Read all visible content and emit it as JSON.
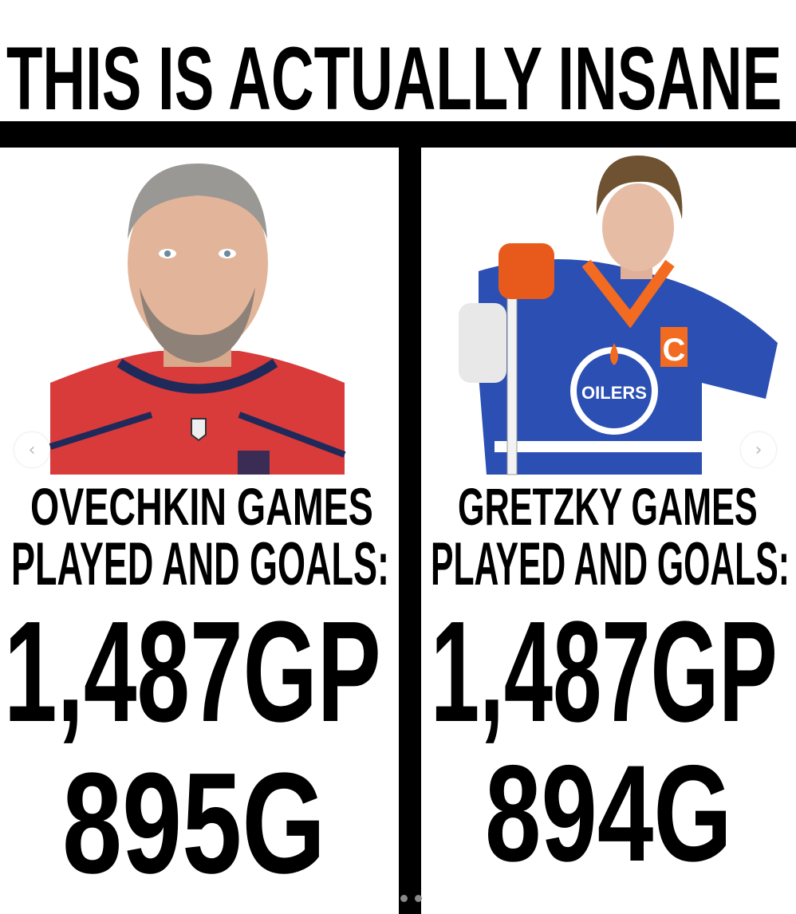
{
  "title": "THIS IS ACTUALLY INSANE",
  "left": {
    "line1": "OVECHKIN GAMES",
    "line2": "PLAYED AND GOALS:",
    "games": "1,487GP",
    "goals": "895G",
    "photo_alt": "Ovechkin portrait",
    "jersey_color": "#d93a3a"
  },
  "right": {
    "line1": "GRETZKY GAMES",
    "line2": "PLAYED AND GOALS:",
    "games": "1,487GP",
    "goals": "894G",
    "photo_alt": "Gretzky portrait",
    "jersey_color": "#2b4fb3",
    "captain_letter": "C",
    "logo_text": "OILERS"
  },
  "carousel": {
    "prev_icon": "chevron-left-icon",
    "next_icon": "chevron-right-icon",
    "prev_glyph": "‹",
    "next_glyph": "›",
    "slides": 2,
    "active_slide": 1
  }
}
